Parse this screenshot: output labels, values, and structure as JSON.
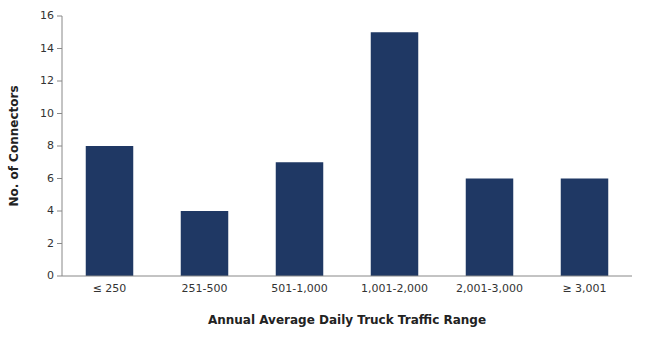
{
  "chart_data": {
    "type": "bar",
    "categories": [
      "≤ 250",
      "251-500",
      "501-1,000",
      "1,001-2,000",
      "2,001-3,000",
      "≥ 3,001"
    ],
    "values": [
      8,
      4,
      7,
      15,
      6,
      6
    ],
    "color": "#1F3864",
    "xlabel": "Annual Average Daily Truck Traffic Range",
    "ylabel": "No. of Connectors",
    "ylim": [
      0,
      16
    ],
    "yticks": [
      0,
      2,
      4,
      6,
      8,
      10,
      12,
      14,
      16
    ]
  }
}
